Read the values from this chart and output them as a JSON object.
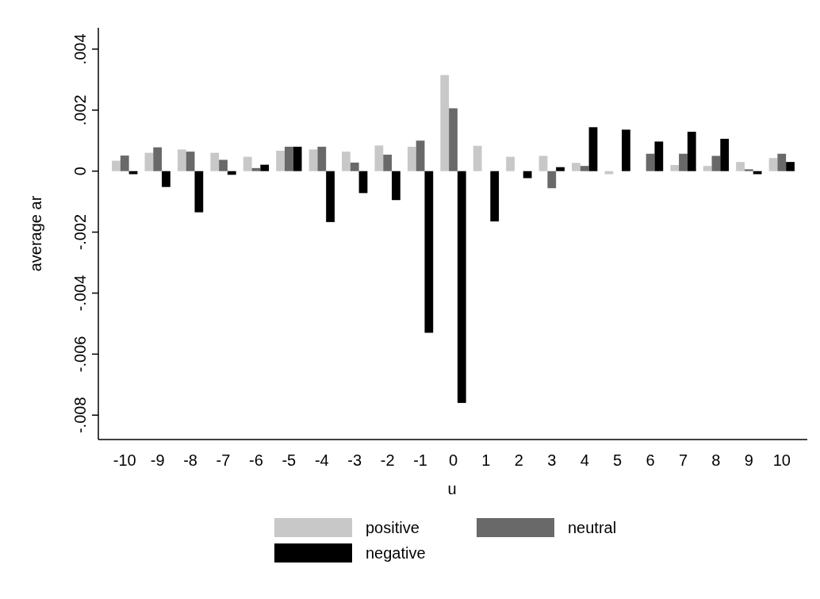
{
  "chart_data": {
    "type": "bar",
    "xlabel": "u",
    "ylabel": "average ar",
    "categories": [
      "-10",
      "-9",
      "-8",
      "-7",
      "-6",
      "-5",
      "-4",
      "-3",
      "-2",
      "-1",
      "0",
      "1",
      "2",
      "3",
      "4",
      "5",
      "6",
      "7",
      "8",
      "9",
      "10"
    ],
    "series": [
      {
        "name": "positive",
        "color": "#c8c8c8",
        "values": [
          0.00034,
          0.0006,
          0.00071,
          0.0006,
          0.00047,
          0.00067,
          0.00071,
          0.00064,
          0.00084,
          0.0008,
          0.00315,
          0.00083,
          0.00047,
          0.0005,
          0.00027,
          -0.0001,
          0,
          0.0002,
          0.00017,
          0.0003,
          0.00043
        ]
      },
      {
        "name": "neutral",
        "color": "#696969",
        "values": [
          0.00051,
          0.00078,
          0.00064,
          0.00037,
          0.0001,
          0.0008,
          0.0008,
          0.00028,
          0.00054,
          0.001,
          0.00206,
          0,
          0,
          -0.00056,
          0.00017,
          0,
          0.00057,
          0.00057,
          0.0005,
          6e-05,
          0.00057
        ]
      },
      {
        "name": "negative",
        "color": "#000000",
        "values": [
          -0.0001,
          -0.00052,
          -0.00135,
          -0.00012,
          0.00021,
          0.0008,
          -0.00167,
          -0.00072,
          -0.00095,
          -0.0053,
          -0.0076,
          -0.00165,
          -0.00023,
          0.00013,
          0.00144,
          0.00136,
          0.00097,
          0.00129,
          0.00106,
          -0.0001,
          0.0003
        ]
      }
    ],
    "ylim": [
      -0.0088,
      0.0047
    ],
    "yticks": [
      {
        "value": -0.008,
        "label": "-.008"
      },
      {
        "value": -0.006,
        "label": "-.006"
      },
      {
        "value": -0.004,
        "label": "-.004"
      },
      {
        "value": -0.002,
        "label": "-.002"
      },
      {
        "value": 0,
        "label": "0"
      },
      {
        "value": 0.002,
        "label": ".002"
      },
      {
        "value": 0.004,
        "label": ".004"
      }
    ],
    "grid": false,
    "legend": "bottom"
  }
}
